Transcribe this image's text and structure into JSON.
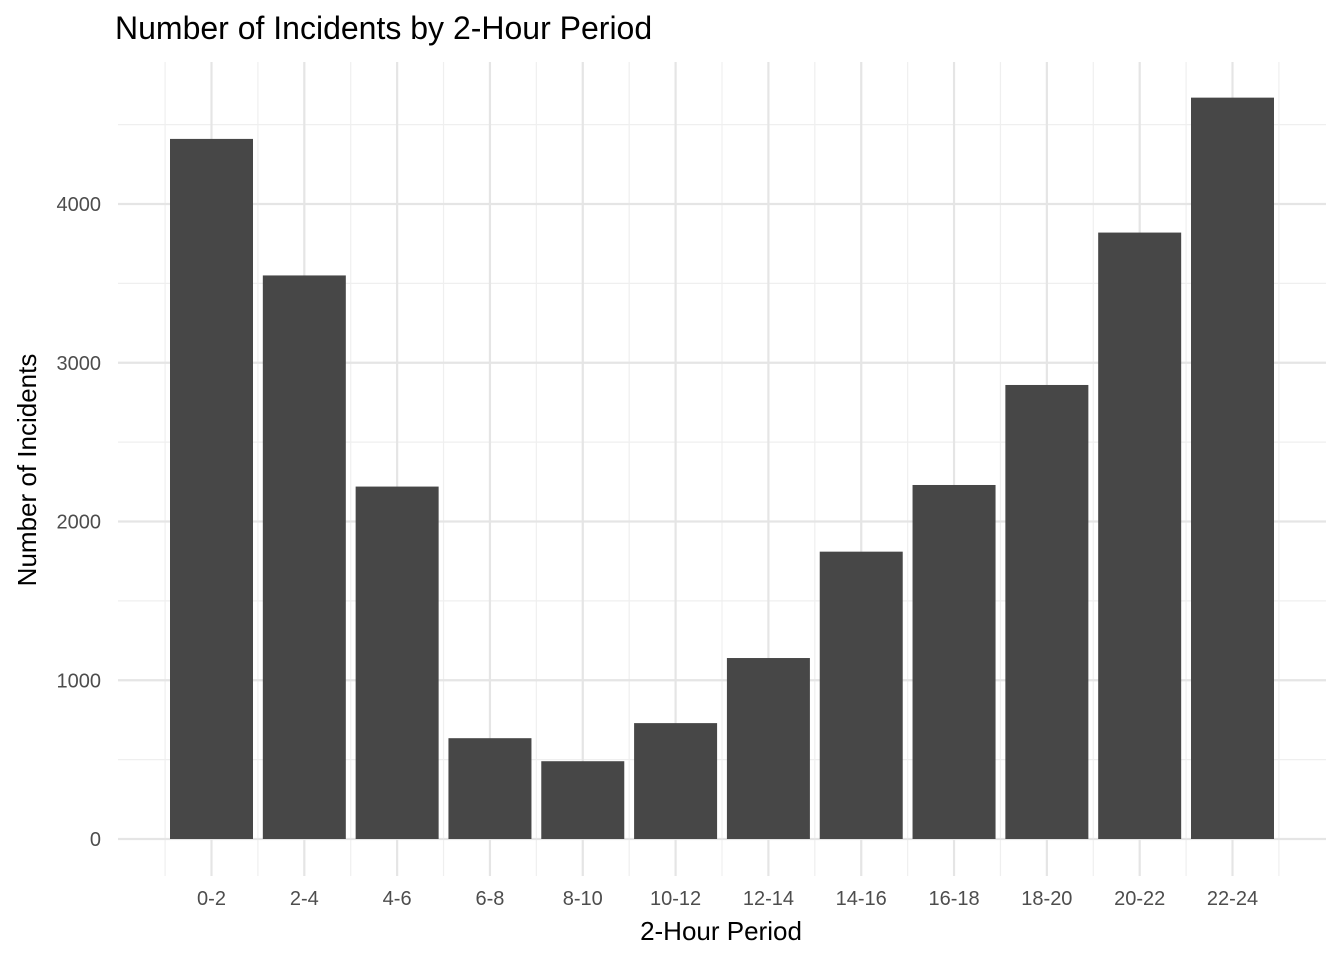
{
  "chart_data": {
    "type": "bar",
    "title": "Number of Incidents by 2-Hour Period",
    "xlabel": "2-Hour Period",
    "ylabel": "Number of Incidents",
    "categories": [
      "0-2",
      "2-4",
      "4-6",
      "6-8",
      "8-10",
      "10-12",
      "12-14",
      "14-16",
      "16-18",
      "18-20",
      "20-22",
      "22-24"
    ],
    "values": [
      4410,
      3550,
      2220,
      635,
      490,
      730,
      1140,
      1810,
      2230,
      2860,
      3820,
      4670
    ],
    "ylim": [
      0,
      4900
    ],
    "yticks": [
      0,
      1000,
      2000,
      3000,
      4000
    ],
    "ytick_labels": [
      "0",
      "1000",
      "2000",
      "3000",
      "4000"
    ],
    "grid": true,
    "bar_color": "#474747",
    "grid_major_color": "#e5e5e5",
    "grid_minor_color": "#efefef"
  }
}
